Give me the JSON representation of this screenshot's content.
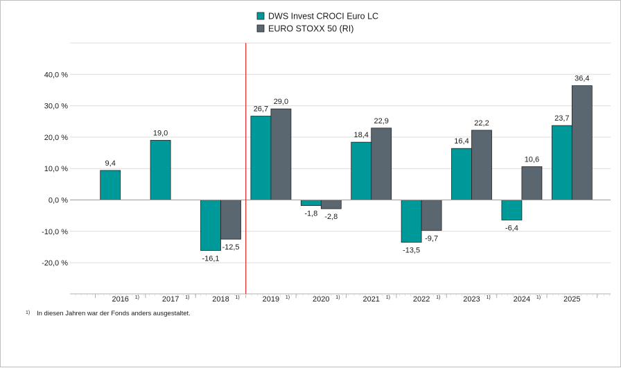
{
  "chart_data": {
    "type": "bar",
    "categories": [
      "2016",
      "2017",
      "2018",
      "2019",
      "2020",
      "2021",
      "2022",
      "2023",
      "2024",
      "2025"
    ],
    "category_marks": [
      "1)",
      "1)",
      "1)",
      "1)",
      "1)",
      "1)",
      "1)",
      "1)",
      "1)",
      ""
    ],
    "series": [
      {
        "name": "DWS Invest CROCI Euro LC",
        "color": "#00999a",
        "values": [
          9.4,
          19.0,
          -16.1,
          26.7,
          -1.8,
          18.4,
          -13.5,
          16.4,
          -6.4,
          23.7
        ],
        "labels": [
          "9,4",
          "19,0",
          "-16,1",
          "26,7",
          "-1,8",
          "18,4",
          "-13,5",
          "16,4",
          "-6,4",
          "23,7"
        ]
      },
      {
        "name": "EURO STOXX 50 (RI)",
        "color": "#5b6770",
        "values": [
          null,
          null,
          -12.5,
          29.0,
          -2.8,
          22.9,
          -9.7,
          22.2,
          10.6,
          36.4
        ],
        "labels": [
          "",
          "",
          "-12,5",
          "29,0",
          "-2,8",
          "22,9",
          "-9,7",
          "22,2",
          "10,6",
          "36,4"
        ]
      }
    ],
    "y_ticks": [
      40,
      30,
      20,
      10,
      0,
      -10,
      -20
    ],
    "y_tick_labels": [
      "40,0 %",
      "30,0 %",
      "20,0 %",
      "10,0 %",
      "0,0 %",
      "-10,0 %",
      "-20,0 %"
    ],
    "ylim": [
      -30,
      50
    ],
    "grid": true,
    "legend_position": "top-center",
    "separator_after_category": "2018",
    "separator_color": "#e02020",
    "title": "",
    "xlabel": "",
    "ylabel": ""
  },
  "footnote": {
    "mark": "1)",
    "text": "In diesen Jahren war der Fonds anders ausgestaltet."
  }
}
